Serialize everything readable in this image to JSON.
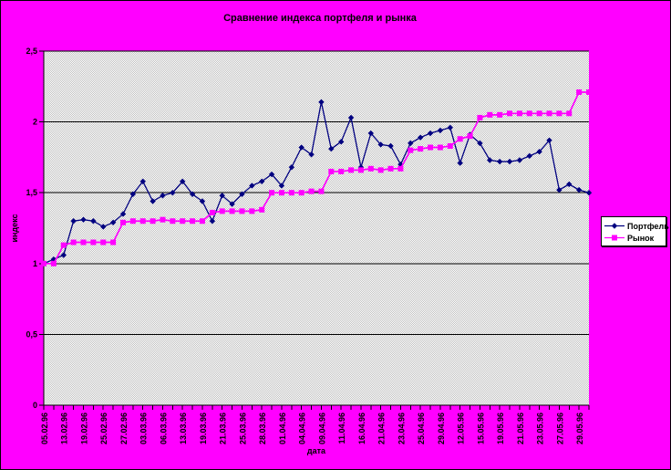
{
  "window": {
    "background_color": "#ff00ff"
  },
  "chart_data": {
    "type": "line",
    "title": "Сравнение индекса портфеля и рынка",
    "xlabel": "дата",
    "ylabel": "индекс",
    "ylim": [
      0,
      2.5
    ],
    "yticks": [
      0,
      0.5,
      1,
      1.5,
      2,
      2.5
    ],
    "ytick_labels": [
      "0",
      "0,5",
      "1",
      "1,5",
      "2",
      "2,5"
    ],
    "grid": true,
    "plot_bg": "dithered-gray",
    "gridline_color": "#000000",
    "legend_position": "right",
    "x_label_every": 2,
    "x_labels": [
      "05.02.96",
      "13.02.96",
      "19.02.96",
      "25.02.96",
      "27.02.96",
      "03.03.96",
      "06.03.96",
      "13.03.96",
      "19.03.96",
      "21.03.96",
      "25.03.96",
      "28.03.96",
      "01.04.96",
      "04.04.96",
      "09.04.96",
      "11.04.96",
      "16.04.96",
      "21.04.96",
      "23.04.96",
      "25.04.96",
      "29.04.96",
      "12.05.96",
      "15.05.96",
      "19.05.96",
      "21.05.96",
      "23.05.96",
      "27.05.96",
      "29.05.96"
    ],
    "series": [
      {
        "name": "Портфель",
        "key": "portfolio",
        "color": "#000080",
        "marker": "diamond",
        "values": [
          1.0,
          1.03,
          1.06,
          1.3,
          1.31,
          1.3,
          1.26,
          1.29,
          1.35,
          1.49,
          1.58,
          1.44,
          1.48,
          1.5,
          1.58,
          1.49,
          1.44,
          1.3,
          1.48,
          1.42,
          1.49,
          1.55,
          1.58,
          1.63,
          1.55,
          1.68,
          1.82,
          1.77,
          2.14,
          1.81,
          1.86,
          2.03,
          1.68,
          1.92,
          1.84,
          1.83,
          1.7,
          1.85,
          1.89,
          1.92,
          1.94,
          1.96,
          1.71,
          1.91,
          1.85,
          1.73,
          1.72,
          1.72,
          1.73,
          1.76,
          1.79,
          1.87,
          1.52,
          1.56,
          1.52,
          1.5
        ]
      },
      {
        "name": "Рынок",
        "key": "market",
        "color": "#ff00ff",
        "marker": "square",
        "values": [
          1.0,
          1.0,
          1.13,
          1.15,
          1.15,
          1.15,
          1.15,
          1.15,
          1.29,
          1.3,
          1.3,
          1.3,
          1.31,
          1.3,
          1.3,
          1.3,
          1.3,
          1.36,
          1.37,
          1.37,
          1.37,
          1.37,
          1.38,
          1.5,
          1.5,
          1.5,
          1.5,
          1.51,
          1.51,
          1.65,
          1.65,
          1.66,
          1.66,
          1.67,
          1.66,
          1.67,
          1.67,
          1.8,
          1.81,
          1.82,
          1.82,
          1.83,
          1.88,
          1.9,
          2.03,
          2.05,
          2.05,
          2.06,
          2.06,
          2.06,
          2.06,
          2.06,
          2.06,
          2.06,
          2.21,
          2.21
        ]
      }
    ]
  }
}
